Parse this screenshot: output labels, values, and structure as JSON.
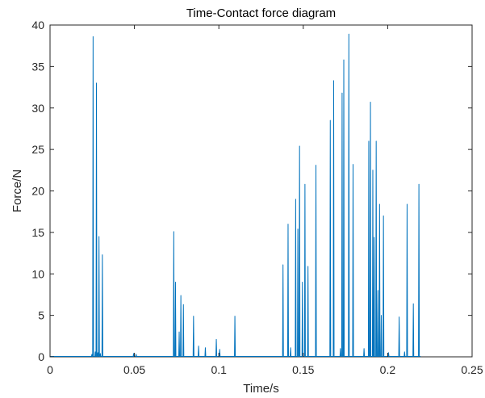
{
  "chart_data": {
    "type": "line",
    "title": "Time-Contact force diagram",
    "xlabel": "Time/s",
    "ylabel": "Force/N",
    "xlim": [
      0,
      0.25
    ],
    "ylim": [
      0,
      40
    ],
    "xticks": [
      0,
      0.05,
      0.1,
      0.15,
      0.2,
      0.25
    ],
    "xtick_labels": [
      "0",
      "0.05",
      "0.1",
      "0.15",
      "0.2",
      "0.25"
    ],
    "yticks": [
      0,
      5,
      10,
      15,
      20,
      25,
      30,
      35,
      40
    ],
    "ytick_labels": [
      "0",
      "5",
      "10",
      "15",
      "20",
      "25",
      "30",
      "35",
      "40"
    ],
    "grid": false,
    "line_color": "#0072BD",
    "series": [
      {
        "baseline": 0.05,
        "peaks": [
          [
            0.0248,
            0.3
          ],
          [
            0.0255,
            38.6
          ],
          [
            0.0268,
            0.6
          ],
          [
            0.0275,
            33.0
          ],
          [
            0.0283,
            0.5
          ],
          [
            0.029,
            14.5
          ],
          [
            0.0298,
            0.4
          ],
          [
            0.031,
            12.3
          ],
          [
            0.0495,
            0.4
          ],
          [
            0.051,
            0.3
          ],
          [
            0.0733,
            15.1
          ],
          [
            0.0743,
            9.0
          ],
          [
            0.0765,
            3.0
          ],
          [
            0.0775,
            7.4
          ],
          [
            0.079,
            6.3
          ],
          [
            0.085,
            4.9
          ],
          [
            0.088,
            1.3
          ],
          [
            0.092,
            1.1
          ],
          [
            0.0985,
            2.1
          ],
          [
            0.1005,
            0.9
          ],
          [
            0.1095,
            4.9
          ],
          [
            0.138,
            11.1
          ],
          [
            0.141,
            16.0
          ],
          [
            0.1425,
            1.1
          ],
          [
            0.1455,
            19.0
          ],
          [
            0.1468,
            15.4
          ],
          [
            0.1478,
            25.4
          ],
          [
            0.1495,
            9.0
          ],
          [
            0.151,
            20.8
          ],
          [
            0.1528,
            10.9
          ],
          [
            0.1575,
            23.1
          ],
          [
            0.166,
            28.5
          ],
          [
            0.168,
            33.3
          ],
          [
            0.172,
            1.0
          ],
          [
            0.173,
            31.8
          ],
          [
            0.174,
            35.8
          ],
          [
            0.177,
            38.9
          ],
          [
            0.1795,
            23.2
          ],
          [
            0.186,
            1.0
          ],
          [
            0.1888,
            26.0
          ],
          [
            0.1898,
            30.7
          ],
          [
            0.1912,
            22.5
          ],
          [
            0.192,
            14.4
          ],
          [
            0.1932,
            26.0
          ],
          [
            0.1942,
            8.0
          ],
          [
            0.1952,
            18.4
          ],
          [
            0.1962,
            5.0
          ],
          [
            0.1975,
            17.0
          ],
          [
            0.2005,
            0.5
          ],
          [
            0.2068,
            4.8
          ],
          [
            0.21,
            0.6
          ],
          [
            0.2115,
            18.4
          ],
          [
            0.2152,
            6.4
          ],
          [
            0.2185,
            20.8
          ]
        ],
        "end_x": 0.2195
      }
    ]
  }
}
